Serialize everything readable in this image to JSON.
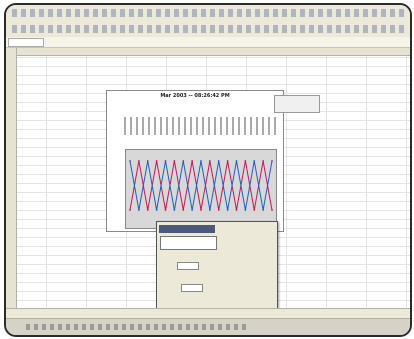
{
  "chart": {
    "title": "Mar 2003 -- 08:26:42 PM"
  },
  "spreadsheet": {
    "rows": 30
  },
  "chart_data": {
    "type": "line",
    "title": "Mar 2003 -- 08:26:42 PM",
    "xlabel": "",
    "ylabel": "",
    "series": [
      {
        "values": [
          0.2,
          0.9,
          0.2,
          0.9,
          0.2,
          0.9,
          0.2,
          0.9,
          0.2,
          0.9,
          0.2,
          0.9,
          0.2,
          0.9,
          0.2,
          0.9,
          0.2
        ]
      },
      {
        "values": [
          0.9,
          0.2,
          0.9,
          0.2,
          0.9,
          0.2,
          0.9,
          0.2,
          0.9,
          0.2,
          0.9,
          0.2,
          0.9,
          0.2,
          0.9,
          0.2,
          0.9
        ]
      }
    ]
  }
}
